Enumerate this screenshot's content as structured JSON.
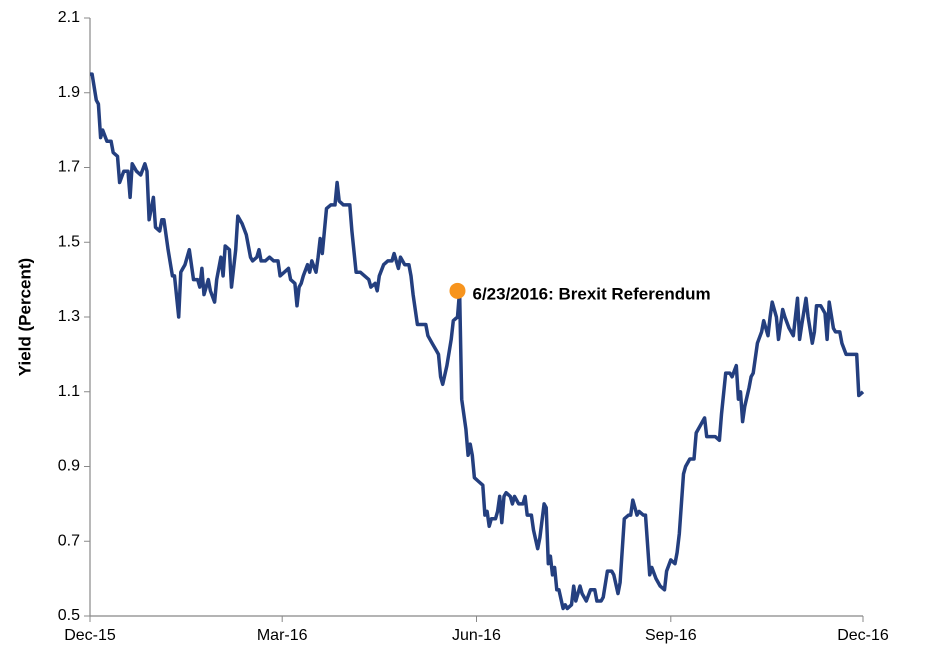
{
  "chart_data": {
    "type": "line",
    "y_label": "Yield (Percent)",
    "x": [
      0,
      1,
      3,
      4,
      5,
      6,
      8,
      10,
      11,
      13,
      14,
      16,
      18,
      19,
      20,
      22,
      24,
      26,
      27,
      28,
      30,
      31,
      33,
      34,
      35,
      37,
      39,
      40,
      42,
      43,
      44,
      45,
      47,
      49,
      51,
      52,
      53,
      54,
      56,
      57,
      59,
      60,
      62,
      63,
      64,
      66,
      67,
      69,
      70,
      72,
      74,
      76,
      77,
      79,
      80,
      81,
      83,
      85,
      87,
      89,
      90,
      92,
      94,
      95,
      97,
      98,
      99,
      100,
      101,
      103,
      104,
      105,
      107,
      108,
      109,
      110,
      112,
      114,
      116,
      117,
      118,
      120,
      123,
      124,
      126,
      128,
      130,
      132,
      133,
      135,
      136,
      137,
      139,
      141,
      143,
      144,
      146,
      147,
      149,
      151,
      152,
      153,
      155,
      157,
      159,
      160,
      162,
      164,
      165,
      166,
      167,
      169,
      171,
      172,
      174,
      175,
      176,
      178,
      179,
      180,
      181,
      182,
      184,
      186,
      187,
      188,
      189,
      190,
      192,
      193,
      194,
      195,
      196,
      197,
      199,
      200,
      201,
      203,
      205,
      206,
      207,
      209,
      210,
      212,
      213,
      215,
      216,
      217,
      218,
      219,
      220,
      221,
      222,
      224,
      225,
      226,
      228,
      229,
      230,
      232,
      233,
      235,
      237,
      239,
      240,
      242,
      243,
      245,
      247,
      248,
      250,
      251,
      253,
      255,
      256,
      257,
      259,
      260,
      262,
      263,
      265,
      266,
      268,
      269,
      270,
      272,
      273,
      275,
      277,
      278,
      279,
      281,
      282,
      284,
      286,
      287,
      289,
      291,
      292,
      294,
      296,
      298,
      299,
      301,
      303,
      304,
      306,
      307,
      308,
      309,
      310,
      312,
      313,
      314,
      316,
      318,
      319,
      321,
      322,
      323,
      325,
      326,
      328,
      329,
      331,
      333,
      335,
      336,
      337,
      339,
      340,
      342,
      343,
      344,
      346,
      348,
      349,
      350,
      352,
      353,
      355,
      356,
      358,
      360,
      363,
      364,
      366
    ],
    "series": [
      {
        "color": "#243f7f",
        "values": [
          1.95,
          1.95,
          1.88,
          1.87,
          1.78,
          1.8,
          1.77,
          1.77,
          1.74,
          1.73,
          1.66,
          1.69,
          1.69,
          1.62,
          1.71,
          1.69,
          1.68,
          1.71,
          1.69,
          1.56,
          1.62,
          1.54,
          1.53,
          1.56,
          1.56,
          1.48,
          1.41,
          1.41,
          1.3,
          1.42,
          1.43,
          1.44,
          1.48,
          1.4,
          1.4,
          1.38,
          1.43,
          1.36,
          1.4,
          1.37,
          1.34,
          1.4,
          1.46,
          1.41,
          1.49,
          1.48,
          1.38,
          1.48,
          1.57,
          1.55,
          1.52,
          1.46,
          1.45,
          1.46,
          1.48,
          1.45,
          1.45,
          1.46,
          1.45,
          1.45,
          1.41,
          1.42,
          1.43,
          1.4,
          1.39,
          1.33,
          1.38,
          1.39,
          1.41,
          1.44,
          1.42,
          1.45,
          1.42,
          1.46,
          1.51,
          1.47,
          1.59,
          1.6,
          1.6,
          1.66,
          1.61,
          1.6,
          1.6,
          1.53,
          1.42,
          1.42,
          1.41,
          1.4,
          1.38,
          1.39,
          1.37,
          1.41,
          1.44,
          1.45,
          1.45,
          1.47,
          1.43,
          1.46,
          1.44,
          1.44,
          1.41,
          1.36,
          1.28,
          1.28,
          1.28,
          1.25,
          1.23,
          1.21,
          1.2,
          1.14,
          1.12,
          1.17,
          1.24,
          1.29,
          1.3,
          1.37,
          1.08,
          1.0,
          0.93,
          0.96,
          0.93,
          0.87,
          0.86,
          0.85,
          0.77,
          0.78,
          0.74,
          0.76,
          0.76,
          0.78,
          0.82,
          0.75,
          0.82,
          0.83,
          0.82,
          0.8,
          0.82,
          0.8,
          0.8,
          0.82,
          0.77,
          0.77,
          0.73,
          0.68,
          0.71,
          0.8,
          0.79,
          0.64,
          0.66,
          0.61,
          0.63,
          0.57,
          0.57,
          0.52,
          0.53,
          0.52,
          0.53,
          0.58,
          0.54,
          0.58,
          0.56,
          0.54,
          0.57,
          0.57,
          0.54,
          0.54,
          0.55,
          0.62,
          0.62,
          0.61,
          0.56,
          0.59,
          0.76,
          0.77,
          0.77,
          0.81,
          0.77,
          0.78,
          0.77,
          0.77,
          0.61,
          0.63,
          0.6,
          0.59,
          0.58,
          0.57,
          0.62,
          0.65,
          0.64,
          0.67,
          0.72,
          0.88,
          0.9,
          0.92,
          0.92,
          0.99,
          1.01,
          1.03,
          0.98,
          0.98,
          0.98,
          0.97,
          1.04,
          1.15,
          1.15,
          1.14,
          1.17,
          1.08,
          1.1,
          1.02,
          1.06,
          1.11,
          1.14,
          1.15,
          1.23,
          1.26,
          1.29,
          1.25,
          1.3,
          1.34,
          1.3,
          1.24,
          1.32,
          1.3,
          1.27,
          1.25,
          1.35,
          1.24,
          1.28,
          1.35,
          1.3,
          1.23,
          1.26,
          1.33,
          1.33,
          1.31,
          1.24,
          1.34,
          1.27,
          1.26,
          1.26,
          1.23,
          1.2,
          1.2,
          1.2,
          1.09,
          1.1
        ]
      }
    ],
    "xlim": [
      0,
      366
    ],
    "xticks": [
      {
        "value": 0,
        "label": "Dec-15"
      },
      {
        "value": 91,
        "label": "Mar-16"
      },
      {
        "value": 183,
        "label": "Jun-16"
      },
      {
        "value": 275,
        "label": "Sep-16"
      },
      {
        "value": 366,
        "label": "Dec-16"
      }
    ],
    "ylim": [
      0.5,
      2.1
    ],
    "yticks": [
      0.5,
      0.7,
      0.9,
      1.1,
      1.3,
      1.5,
      1.7,
      1.9,
      2.1
    ],
    "grid": false,
    "annotations": [
      {
        "x": 174,
        "y": 1.37,
        "label": "6/23/2016: Brexit Referendum",
        "color": "#f7941d"
      }
    ]
  }
}
